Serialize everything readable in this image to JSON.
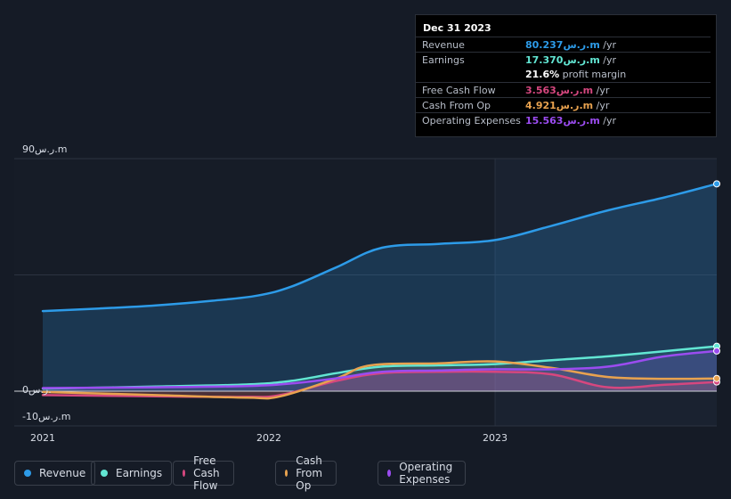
{
  "tooltip": {
    "date": "Dec 31 2023",
    "rows": [
      {
        "label": "Revenue",
        "value": "80.237ر.س.m",
        "unit": " /yr",
        "color": "#2d9be8"
      },
      {
        "label": "Earnings",
        "value": "17.370ر.س.m",
        "unit": " /yr",
        "color": "#62e6d3"
      },
      {
        "label": "",
        "value": "21.6%",
        "unit": " profit margin",
        "color": "#ffffff"
      },
      {
        "label": "Free Cash Flow",
        "value": "3.563ر.س.m",
        "unit": " /yr",
        "color": "#d6477f"
      },
      {
        "label": "Cash From Op",
        "value": "4.921ر.س.m",
        "unit": " /yr",
        "color": "#e8a24f"
      },
      {
        "label": "Operating Expenses",
        "value": "15.563ر.س.m",
        "unit": " /yr",
        "color": "#9b4cf0"
      }
    ]
  },
  "legend": [
    {
      "label": "Revenue",
      "color": "#2d9be8"
    },
    {
      "label": "Earnings",
      "color": "#62e6d3"
    },
    {
      "label": "Free Cash Flow",
      "color": "#d6477f"
    },
    {
      "label": "Cash From Op",
      "color": "#e8a24f"
    },
    {
      "label": "Operating Expenses",
      "color": "#9b4cf0"
    }
  ],
  "chart_data": {
    "type": "area",
    "ylabels": [
      "90ر.س.m",
      "0ر.س.",
      "-10ر.س.m"
    ],
    "ylim": [
      -10,
      90
    ],
    "xlim": [
      2021.0,
      2023.98
    ],
    "xticks": [
      {
        "label": "2021",
        "value": 2021.0
      },
      {
        "label": "2022",
        "value": 2022.0
      },
      {
        "label": "2023",
        "value": 2023.0
      }
    ],
    "highlight_start": 2023.0,
    "series": [
      {
        "name": "Revenue",
        "color": "#2d9be8",
        "x": [
          2021.0,
          2021.25,
          2021.5,
          2021.75,
          2021.95,
          2022.1,
          2022.3,
          2022.5,
          2022.75,
          2023.0,
          2023.25,
          2023.5,
          2023.75,
          2023.98
        ],
        "values": [
          31.0,
          32.0,
          33.2,
          35.0,
          37.0,
          40.5,
          48.0,
          55.5,
          57.0,
          58.5,
          64.0,
          70.0,
          75.0,
          80.237
        ]
      },
      {
        "name": "Earnings",
        "color": "#62e6d3",
        "x": [
          2021.0,
          2021.5,
          2021.9,
          2022.1,
          2022.3,
          2022.5,
          2022.75,
          2023.0,
          2023.25,
          2023.5,
          2023.75,
          2023.98
        ],
        "values": [
          1.0,
          1.8,
          2.6,
          4.0,
          7.0,
          9.5,
          10.0,
          10.5,
          12.0,
          13.5,
          15.5,
          17.37
        ]
      },
      {
        "name": "Free Cash Flow",
        "color": "#d6477f",
        "x": [
          2021.0,
          2021.5,
          2021.9,
          2022.05,
          2022.3,
          2022.5,
          2022.75,
          2023.0,
          2023.25,
          2023.5,
          2023.75,
          2023.98
        ],
        "values": [
          -1.5,
          -2.0,
          -2.2,
          -1.5,
          4.0,
          7.0,
          7.5,
          7.5,
          6.5,
          1.5,
          2.5,
          3.563
        ]
      },
      {
        "name": "Cash From Op",
        "color": "#e8a24f",
        "x": [
          2021.0,
          2021.5,
          2021.9,
          2022.05,
          2022.3,
          2022.45,
          2022.75,
          2023.0,
          2023.25,
          2023.5,
          2023.75,
          2023.98
        ],
        "values": [
          -0.3,
          -1.5,
          -2.5,
          -2.0,
          5.0,
          10.0,
          10.8,
          11.5,
          9.0,
          5.5,
          4.8,
          4.921
        ]
      },
      {
        "name": "Operating Expenses",
        "color": "#9b4cf0",
        "x": [
          2021.0,
          2021.5,
          2021.9,
          2022.1,
          2022.3,
          2022.5,
          2022.75,
          2023.0,
          2023.25,
          2023.5,
          2023.75,
          2023.98
        ],
        "values": [
          1.2,
          1.5,
          2.0,
          3.0,
          5.0,
          7.5,
          8.0,
          8.5,
          8.5,
          9.5,
          13.5,
          15.563
        ]
      }
    ]
  }
}
